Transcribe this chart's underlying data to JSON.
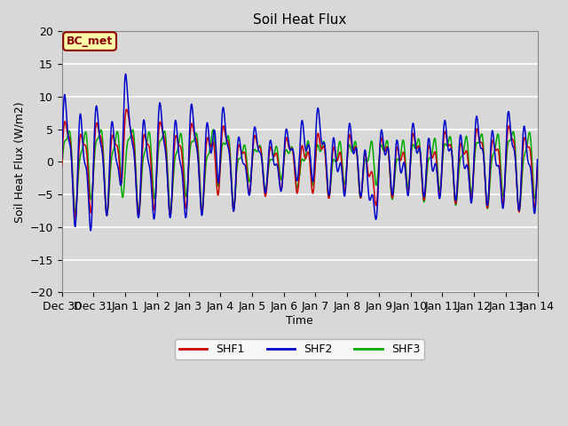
{
  "title": "Soil Heat Flux",
  "ylabel": "Soil Heat Flux (W/m2)",
  "xlabel": "Time",
  "ylim": [
    -20,
    20
  ],
  "bg_color": "#d8d8d8",
  "plot_bg_color": "#d8d8d8",
  "grid_color": "#ffffff",
  "annotation_text": "BC_met",
  "annotation_bg": "#ffffaa",
  "annotation_border": "#8B0000",
  "line_colors": {
    "SHF1": "#cc0000",
    "SHF2": "#0000cc",
    "SHF3": "#00aa00"
  },
  "legend_labels": [
    "SHF1",
    "SHF2",
    "SHF3"
  ],
  "xtick_labels": [
    "Dec 30",
    "Dec 31",
    "Jan 1",
    "Jan 2",
    "Jan 3",
    "Jan 4",
    "Jan 5",
    "Jan 6",
    "Jan 7",
    "Jan 8",
    "Jan 9",
    "Jan 10",
    "Jan 11",
    "Jan 12",
    "Jan 13",
    "Jan 14"
  ]
}
